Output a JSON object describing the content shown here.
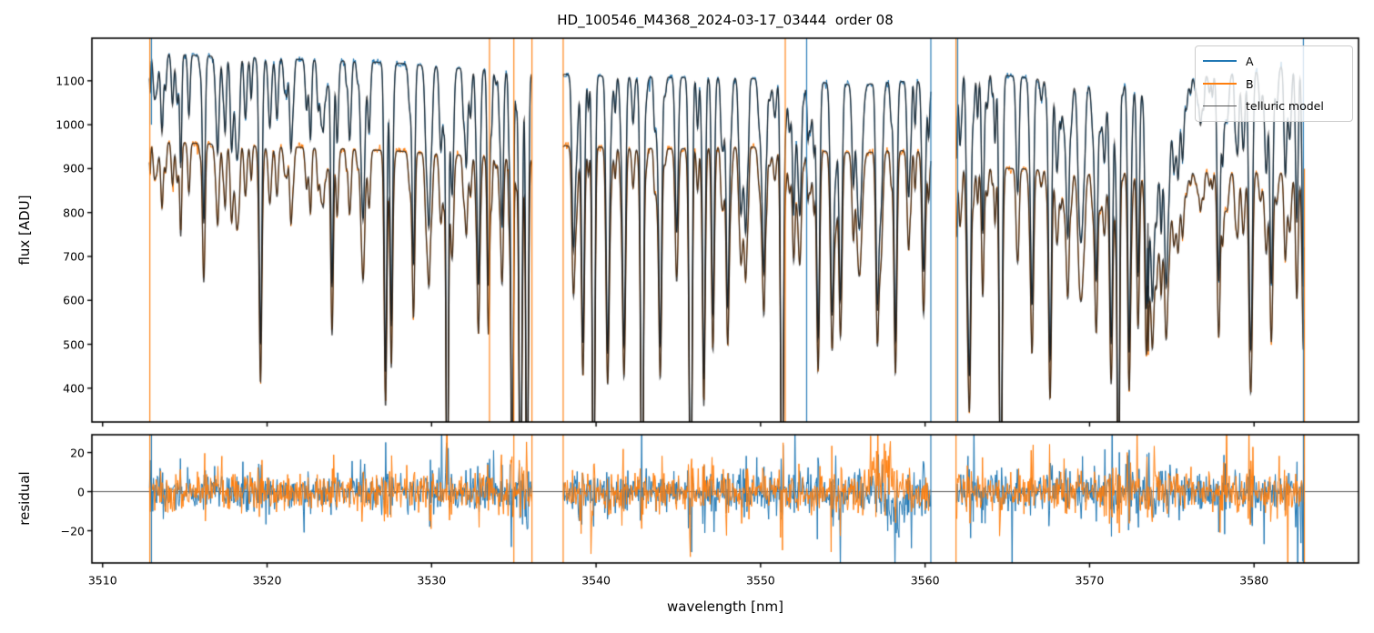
{
  "axes_text": {
    "title": "HD_100546_M4368_2024-03-17_03444  order 08",
    "xlabel": "wavelength [nm]",
    "ylabel_top": "flux [ADU]",
    "ylabel_bottom": "residual",
    "xtick_labels": [
      "3510",
      "3520",
      "3530",
      "3540",
      "3550",
      "3560",
      "3570",
      "3580"
    ],
    "ytick_labels_top": [
      "400",
      "500",
      "600",
      "700",
      "800",
      "900",
      "1000",
      "1100"
    ],
    "ytick_labels_bottom": [
      "−20",
      "0",
      "20"
    ]
  },
  "legend": {
    "entries": [
      {
        "label": "A",
        "color": "#1f77b4",
        "line_width": 2.2
      },
      {
        "label": "B",
        "color": "#ff7f0e",
        "line_width": 2.2
      },
      {
        "label": "telluric model",
        "color": "#555555",
        "line_width": 1.4
      }
    ]
  },
  "chart_data": {
    "type": "line",
    "title": "HD_100546_M4368_2024-03-17_03444  order 08",
    "xlabel": "wavelength [nm]",
    "xlim": [
      3509.35,
      3586.35
    ],
    "xticks": [
      3510,
      3520,
      3530,
      3540,
      3550,
      3560,
      3570,
      3580
    ],
    "panels": [
      {
        "name": "flux",
        "ylabel": "flux [ADU]",
        "ylim": [
          323,
          1197
        ],
        "yticks": [
          400,
          500,
          600,
          700,
          800,
          900,
          1000,
          1100
        ],
        "series": [
          {
            "name": "A",
            "color": "#1f77b4"
          },
          {
            "name": "B",
            "color": "#ff7f0e"
          },
          {
            "name": "telluric model",
            "color": "#555555"
          }
        ]
      },
      {
        "name": "residual",
        "ylabel": "residual",
        "ylim": [
          -36.5,
          29.1
        ],
        "yticks": [
          -20,
          0,
          20
        ],
        "zero_line": true,
        "series": [
          {
            "name": "A residual",
            "color": "#1f77b4"
          },
          {
            "name": "B residual",
            "color": "#ff7f0e"
          }
        ]
      }
    ],
    "segments": [
      [
        3512.85,
        3536.1
      ],
      [
        3538.0,
        3560.35
      ],
      [
        3561.9,
        3583.05
      ]
    ],
    "continuum_A": [
      [
        3512.8,
        1164
      ],
      [
        3516,
        1157
      ],
      [
        3520,
        1152
      ],
      [
        3524,
        1146
      ],
      [
        3528,
        1140
      ],
      [
        3531,
        1130
      ],
      [
        3534,
        1124
      ],
      [
        3536.2,
        1122
      ],
      [
        3538,
        1115
      ],
      [
        3541,
        1110
      ],
      [
        3545,
        1108
      ],
      [
        3549,
        1106
      ],
      [
        3553,
        1098
      ],
      [
        3556,
        1090
      ],
      [
        3558,
        1098
      ],
      [
        3560.4,
        1100
      ],
      [
        3561.9,
        1122
      ],
      [
        3564,
        1116
      ],
      [
        3567,
        1104
      ],
      [
        3570,
        1094
      ],
      [
        3573.3,
        1088
      ],
      [
        3576.5,
        1108
      ],
      [
        3578.5,
        1116
      ],
      [
        3580.5,
        1124
      ],
      [
        3582,
        1136
      ],
      [
        3583.2,
        1146
      ]
    ],
    "continuum_B": [
      [
        3512.8,
        963
      ],
      [
        3516,
        957
      ],
      [
        3520,
        951
      ],
      [
        3524,
        946
      ],
      [
        3528,
        940
      ],
      [
        3531,
        932
      ],
      [
        3534,
        927
      ],
      [
        3536.2,
        925
      ],
      [
        3538,
        952
      ],
      [
        3541,
        948
      ],
      [
        3545,
        945
      ],
      [
        3549,
        950
      ],
      [
        3553,
        942
      ],
      [
        3556,
        935
      ],
      [
        3558,
        942
      ],
      [
        3560.4,
        938
      ],
      [
        3561.9,
        905
      ],
      [
        3564,
        902
      ],
      [
        3567,
        898
      ],
      [
        3570,
        894
      ],
      [
        3573.3,
        890
      ],
      [
        3576.5,
        892
      ],
      [
        3578.5,
        890
      ],
      [
        3580.5,
        894
      ],
      [
        3582,
        890
      ],
      [
        3583.2,
        882
      ]
    ],
    "strong_lines": [
      [
        3514.25,
        0.1,
        0.07
      ],
      [
        3514.75,
        0.22,
        0.06
      ],
      [
        3515.25,
        0.12,
        0.07
      ],
      [
        3516.15,
        0.33,
        0.08
      ],
      [
        3517.0,
        0.1,
        0.07
      ],
      [
        3517.45,
        0.15,
        0.07
      ],
      [
        3518.3,
        0.09,
        0.07
      ],
      [
        3519.6,
        0.55,
        0.08
      ],
      [
        3520.6,
        0.12,
        0.08
      ],
      [
        3521.45,
        0.18,
        0.08
      ],
      [
        3522.4,
        0.1,
        0.08
      ],
      [
        3523.3,
        0.12,
        0.08
      ],
      [
        3523.95,
        0.45,
        0.08
      ],
      [
        3525.0,
        0.12,
        0.08
      ],
      [
        3526.2,
        0.14,
        0.08
      ],
      [
        3527.2,
        0.62,
        0.08
      ],
      [
        3527.55,
        0.5,
        0.07
      ],
      [
        3528.9,
        0.4,
        0.08
      ],
      [
        3530.0,
        0.14,
        0.08
      ],
      [
        3530.95,
        0.97,
        0.07
      ],
      [
        3532.1,
        0.16,
        0.08
      ],
      [
        3532.85,
        0.42,
        0.08
      ],
      [
        3533.45,
        0.4,
        0.07
      ],
      [
        3534.3,
        0.22,
        0.08
      ],
      [
        3534.9,
        0.93,
        0.07
      ],
      [
        3535.4,
        0.96,
        0.08
      ],
      [
        3535.8,
        0.97,
        0.07
      ],
      [
        3538.6,
        0.2,
        0.08
      ],
      [
        3539.2,
        0.55,
        0.09
      ],
      [
        3539.85,
        0.93,
        0.08
      ],
      [
        3540.7,
        0.52,
        0.09
      ],
      [
        3541.7,
        0.48,
        0.09
      ],
      [
        3542.8,
        0.95,
        0.08
      ],
      [
        3543.9,
        0.55,
        0.09
      ],
      [
        3544.9,
        0.32,
        0.09
      ],
      [
        3545.75,
        0.96,
        0.08
      ],
      [
        3546.55,
        0.62,
        0.08
      ],
      [
        3547.1,
        0.48,
        0.08
      ],
      [
        3548.0,
        0.47,
        0.09
      ],
      [
        3549.1,
        0.27,
        0.09
      ],
      [
        3550.2,
        0.4,
        0.09
      ],
      [
        3551.3,
        0.94,
        0.08
      ],
      [
        3552.4,
        0.24,
        0.09
      ],
      [
        3553.5,
        0.52,
        0.09
      ],
      [
        3554.35,
        0.48,
        0.1
      ],
      [
        3554.85,
        0.42,
        0.09
      ],
      [
        3556.0,
        0.3,
        0.16
      ],
      [
        3557.1,
        0.45,
        0.09
      ],
      [
        3558.2,
        0.52,
        0.09
      ],
      [
        3559.0,
        0.24,
        0.09
      ],
      [
        3559.9,
        0.38,
        0.09
      ],
      [
        3562.7,
        0.58,
        0.09
      ],
      [
        3563.5,
        0.2,
        0.08
      ],
      [
        3564.6,
        0.94,
        0.08
      ],
      [
        3565.6,
        0.2,
        0.08
      ],
      [
        3566.5,
        0.4,
        0.09
      ],
      [
        3567.6,
        0.57,
        0.09
      ],
      [
        3568.65,
        0.28,
        0.1
      ],
      [
        3569.5,
        0.32,
        0.16
      ],
      [
        3570.4,
        0.4,
        0.09
      ],
      [
        3571.3,
        0.48,
        0.08
      ],
      [
        3571.75,
        0.97,
        0.07
      ],
      [
        3572.4,
        0.52,
        0.08
      ],
      [
        3572.95,
        0.4,
        0.08
      ],
      [
        3573.45,
        0.45,
        0.08
      ],
      [
        3577.85,
        0.32,
        0.09
      ],
      [
        3579.0,
        0.16,
        0.08
      ],
      [
        3579.75,
        0.32,
        0.09
      ],
      [
        3581.05,
        0.38,
        0.09
      ],
      [
        3581.9,
        0.22,
        0.08
      ],
      [
        3582.6,
        0.32,
        0.08
      ],
      [
        3583.0,
        0.45,
        0.08
      ]
    ],
    "band_head": {
      "start": 3573.55,
      "end": 3576.25,
      "depth": 0.3,
      "teeth": {
        "count": 11,
        "spacing": 0.26,
        "depth": 0.1,
        "width": 0.05
      }
    },
    "weak_lines": {
      "count": 190,
      "depth_min": 0.02,
      "depth_max": 0.1,
      "width_min": 0.04,
      "width_max": 0.09
    },
    "medium_lines": {
      "count": 55,
      "depth_min": 0.08,
      "depth_max": 0.2,
      "width_min": 0.06,
      "width_max": 0.11
    },
    "artifact_lines": [
      {
        "x": 3512.87,
        "series": "B",
        "flux": "full",
        "resid": true
      },
      {
        "x": 3512.97,
        "series": "A",
        "flux": "upper",
        "resid": true
      },
      {
        "x": 3533.52,
        "series": "B",
        "flux": "full",
        "resid": false
      },
      {
        "x": 3535.0,
        "series": "B",
        "flux": "full",
        "resid": true
      },
      {
        "x": 3536.1,
        "series": "B",
        "flux": "full",
        "resid": true
      },
      {
        "x": 3538.0,
        "series": "B",
        "flux": "full",
        "resid": true
      },
      {
        "x": 3551.5,
        "series": "B",
        "flux": "full",
        "resid": false
      },
      {
        "x": 3552.8,
        "series": "A",
        "flux": "full",
        "resid": false
      },
      {
        "x": 3560.35,
        "series": "A",
        "flux": "full",
        "resid": true
      },
      {
        "x": 3561.88,
        "series": "B",
        "flux": "full",
        "resid": true
      },
      {
        "x": 3561.98,
        "series": "A",
        "flux": "full",
        "resid": false
      },
      {
        "x": 3583.0,
        "series": "A",
        "flux": "full",
        "resid": true
      },
      {
        "x": 3583.06,
        "series": "B",
        "flux": "lower",
        "resid": true
      }
    ],
    "residual_features": [
      {
        "series": "B",
        "center": 3557.4,
        "sigma": 0.55,
        "amp": 15
      },
      {
        "series": "A",
        "center": 3558.1,
        "sigma": 0.5,
        "amp": -13
      },
      {
        "series": "B",
        "center": 3555.9,
        "sigma": 0.3,
        "amp": -6
      }
    ],
    "noise": {
      "seed": 7,
      "flux_sigma": 4.2,
      "residual_sigma_base": 4.3,
      "residual_line_boost": 13
    }
  }
}
